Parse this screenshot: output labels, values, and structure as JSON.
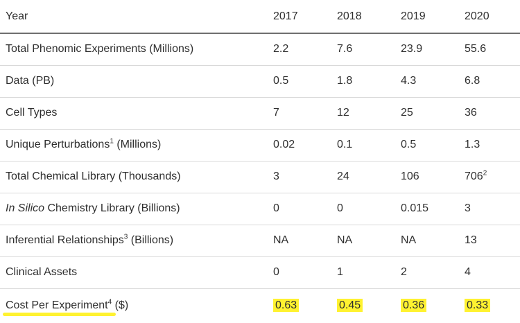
{
  "header": {
    "year_label": "Year",
    "years": [
      "2017",
      "2018",
      "2019",
      "2020"
    ]
  },
  "rows": [
    {
      "label": "Total Phenomic Experiments (Millions)",
      "sup": "",
      "label_tail": "",
      "values": [
        "2.2",
        "7.6",
        "23.9",
        "55.6"
      ]
    },
    {
      "label": "Data (PB)",
      "sup": "",
      "label_tail": "",
      "values": [
        "0.5",
        "1.8",
        "4.3",
        "6.8"
      ]
    },
    {
      "label": "Cell Types",
      "sup": "",
      "label_tail": "",
      "values": [
        "7",
        "12",
        "25",
        "36"
      ]
    },
    {
      "label": "Unique Perturbations",
      "sup": "1",
      "label_tail": " (Millions)",
      "values": [
        "0.02",
        "0.1",
        "0.5",
        "1.3"
      ]
    },
    {
      "label": "Total Chemical Library (Thousands)",
      "sup": "",
      "label_tail": "",
      "values": [
        "3",
        "24",
        "106",
        "706"
      ],
      "value_sup_2020": "2"
    },
    {
      "label_italic": "In Silico",
      "label": " Chemistry Library (Billions)",
      "sup": "",
      "label_tail": "",
      "values": [
        "0",
        "0",
        "0.015",
        "3"
      ]
    },
    {
      "label": "Inferential Relationships",
      "sup": "3",
      "label_tail": " (Billions)",
      "values": [
        "NA",
        "NA",
        "NA",
        "13"
      ]
    },
    {
      "label": "Clinical Assets",
      "sup": "",
      "label_tail": "",
      "values": [
        "0",
        "1",
        "2",
        "4"
      ]
    },
    {
      "label": "Cost Per Experiment",
      "sup": "4",
      "label_tail": " ($)",
      "values": [
        "0.63",
        "0.45",
        "0.36",
        "0.33"
      ]
    }
  ],
  "colors": {
    "highlight": "#fff230",
    "text": "#2f2f2f",
    "rule": "#d9d9d9",
    "header_rule": "#6f6f6f"
  }
}
